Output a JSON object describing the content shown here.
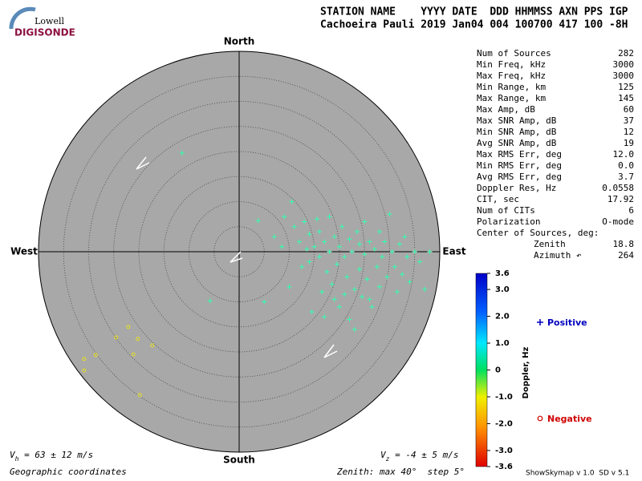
{
  "header": {
    "logo_top": "Lowell",
    "logo_bottom": "DIGISONDE",
    "columns": "STATION NAME    YYYY DATE  DDD HHMMSS AXN PPS IGP",
    "values": "Cachoeira Pauli 2019 Jan04 004 100700 417 100 -8H"
  },
  "chart_data": {
    "type": "skymap",
    "directions": {
      "north": "North",
      "south": "South",
      "west": "West",
      "east": "East"
    },
    "xlim": [
      -40,
      40
    ],
    "ylim": [
      -40,
      40
    ],
    "rings": [
      5,
      10,
      15,
      20,
      25,
      30,
      35,
      40
    ],
    "series": [
      {
        "name": "Positive",
        "color": "#30ffb0",
        "x": [
          -11.4,
          -5.8,
          3.8,
          5.0,
          7.0,
          8.5,
          9.0,
          10.0,
          10.5,
          11.0,
          12.0,
          12.5,
          13.0,
          13.5,
          14.0,
          14.0,
          14.5,
          15.0,
          15.5,
          16.0,
          16.0,
          16.5,
          17.0,
          17.5,
          18.0,
          18.0,
          18.5,
          19.0,
          19.5,
          20.0,
          20.0,
          20.5,
          21.0,
          21.5,
          22.0,
          22.0,
          22.5,
          23.0,
          23.5,
          24.0,
          24.0,
          24.5,
          25.0,
          25.0,
          25.5,
          26.0,
          26.5,
          27.0,
          27.5,
          28.0,
          28.0,
          28.5,
          29.0,
          29.5,
          30.0,
          30.5,
          31.0,
          31.5,
          32.0,
          32.5,
          33.0,
          33.5,
          34.0,
          35.0,
          36.0,
          37.0,
          38.0,
          19.0,
          21.0,
          17.0,
          23.0,
          26.0
        ],
        "y": [
          19.7,
          -9.8,
          6.2,
          -10.0,
          3.0,
          1.0,
          7.0,
          -7.0,
          10.0,
          5.0,
          2.0,
          -3.0,
          6.0,
          0.5,
          -2.0,
          3.5,
          -12.0,
          1.0,
          6.5,
          -1.0,
          4.0,
          -8.0,
          2.0,
          -4.0,
          0.0,
          7.0,
          -6.5,
          3.0,
          -2.5,
          1.0,
          -11.0,
          5.0,
          -1.0,
          -5.0,
          2.5,
          -13.5,
          0.0,
          -7.5,
          4.0,
          -3.5,
          1.5,
          -9.0,
          -0.5,
          6.0,
          -5.5,
          2.0,
          -11.0,
          0.5,
          -3.0,
          -7.0,
          4.0,
          -1.0,
          2.0,
          -5.0,
          7.5,
          0.0,
          -3.0,
          -8.0,
          1.5,
          -4.5,
          3.0,
          -1.0,
          -6.0,
          0.0,
          -2.0,
          -7.5,
          0.0,
          -9.5,
          -8.5,
          -13.0,
          -15.5,
          -9.5
        ]
      },
      {
        "name": "Negative",
        "color": "#e8e020",
        "x": [
          -22.1,
          -24.5,
          -20.2,
          -17.3,
          -28.6,
          -21.1,
          -30.9,
          -30.9,
          -19.8
        ],
        "y": [
          -15.0,
          -17.1,
          -17.4,
          -18.7,
          -20.6,
          -20.5,
          -21.4,
          -23.7,
          -28.6
        ]
      }
    ],
    "colorbar": {
      "label": "Doppler, Hz",
      "lim": [
        -3.6,
        3.6
      ],
      "ticks": [
        3.6,
        {
          "value": 3.0,
          "label": "3.0"
        },
        {
          "value": 2.0,
          "label": "2.0"
        },
        {
          "value": 1.0,
          "label": "1.0"
        },
        0,
        {
          "value": -1.0,
          "label": "-1.0"
        },
        {
          "value": -2.0,
          "label": "-2.0"
        },
        {
          "value": -3.0,
          "label": "-3.0"
        },
        -3.6
      ]
    }
  },
  "stats": [
    {
      "label": "Num of Sources",
      "value": "282"
    },
    {
      "label": "Min Freq, kHz",
      "value": "3000"
    },
    {
      "label": "Max Freq, kHz",
      "value": "3000"
    },
    {
      "label": "Min Range, km",
      "value": "125"
    },
    {
      "label": "Max Range, km",
      "value": "145"
    },
    {
      "label": "Max Amp, dB",
      "value": "60"
    },
    {
      "label": "Max SNR Amp, dB",
      "value": "37"
    },
    {
      "label": "Min SNR Amp, dB",
      "value": "12"
    },
    {
      "label": "Avg SNR Amp, dB",
      "value": "19"
    },
    {
      "label": "Max RMS Err, deg",
      "value": "12.0"
    },
    {
      "label": "Min RMS Err, deg",
      "value": "0.0"
    },
    {
      "label": "Avg RMS Err, deg",
      "value": "3.7"
    },
    {
      "label": "Doppler Res, Hz",
      "value": "0.0558"
    },
    {
      "label": "CIT, sec",
      "value": "17.92"
    },
    {
      "label": "Num of CITs",
      "value": "6"
    },
    {
      "label": "Polarization",
      "value": "O-mode"
    }
  ],
  "center_of_sources": {
    "title": "Center of Sources, deg:",
    "zenith_label": "Zenith",
    "zenith": "18.8",
    "azimuth_label": "Azimuth ↶",
    "azimuth": "264"
  },
  "footer": {
    "vh_symbol": "V",
    "vh_sub": "h",
    "vh_text": " = 63 ± 12 m/s",
    "vz_symbol": "V",
    "vz_sub": "z",
    "vz_text": " = -4 ± 5 m/s",
    "coordinates": "Geographic coordinates",
    "zenith_info": "Zenith: max 40°  step 5°",
    "version": "ShowSkymap v 1.0  SD v 5.1"
  }
}
